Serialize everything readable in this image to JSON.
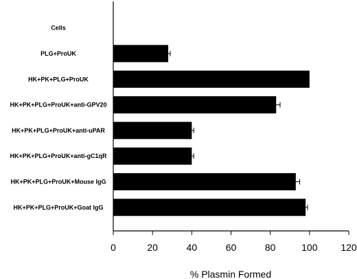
{
  "chart_data": {
    "type": "bar",
    "orientation": "horizontal",
    "categories": [
      "Cells",
      "PLG+ProUK",
      "HK+PK+PLG+ProUK",
      "HK+PK+PLG+ProUK+anti-GPV20",
      "HK+PK+PLG+ProUK+anti-uPAR",
      "HK+PK+PLG+ProUK+anti-gC1qR",
      "HK+PK+PLG+ProUK+Mouse IgG",
      "HK+PK+PLG+ProUK+Goat IgG"
    ],
    "values": [
      0,
      28,
      100,
      83,
      40,
      40,
      93,
      98
    ],
    "errors": [
      0,
      1,
      0,
      2,
      1,
      1,
      2,
      1
    ],
    "xlabel": "% Plasmin Formed",
    "ylabel": "",
    "xlim": [
      0,
      120
    ],
    "xticks": [
      0,
      20,
      40,
      60,
      80,
      100,
      120
    ],
    "grid": false,
    "bar_color": "#000000"
  }
}
